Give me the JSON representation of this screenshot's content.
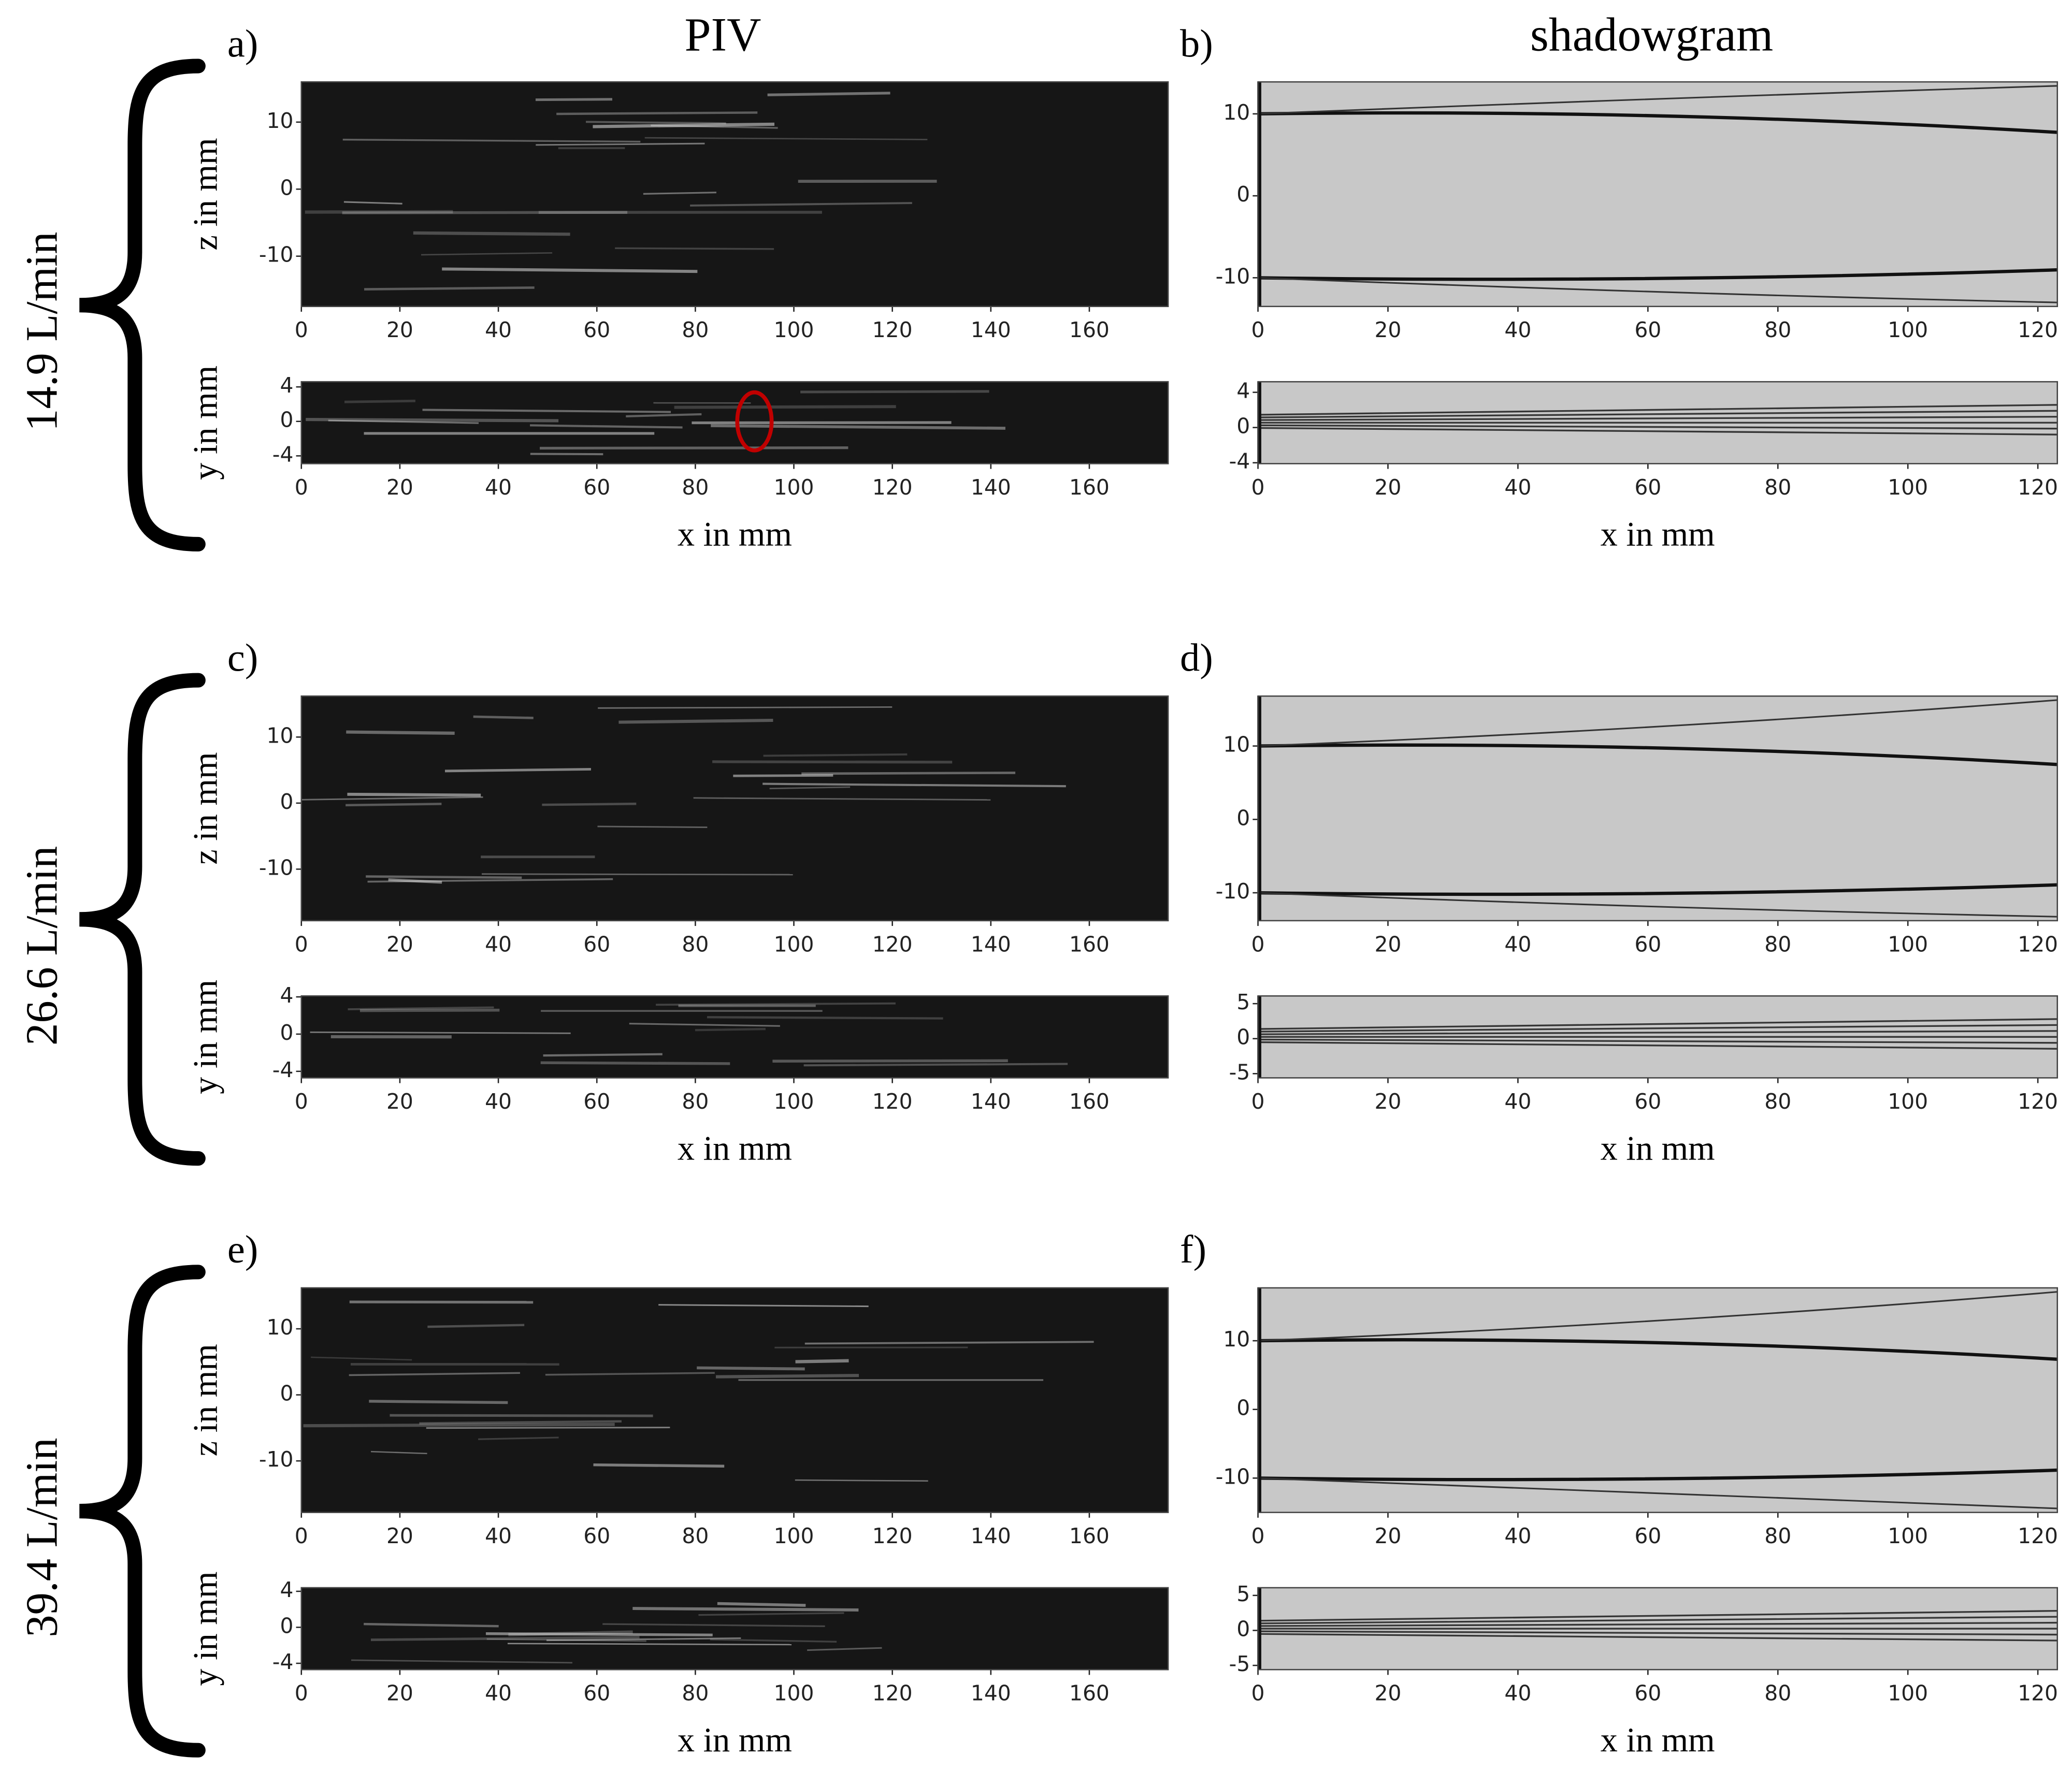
{
  "column_titles": [
    "PIV",
    "shadowgram"
  ],
  "rows": [
    {
      "label": "14.9 L/min",
      "panels": [
        {
          "letter": "a)",
          "top": {
            "ylabel": "z in mm",
            "xlim": [
              0,
              176
            ],
            "ylim": [
              -17.5,
              16
            ],
            "xticks": [
              0,
              20,
              40,
              60,
              80,
              100,
              120,
              140,
              160
            ],
            "yticks": [
              -10,
              0,
              10
            ]
          },
          "bottom": {
            "ylabel": "y in mm",
            "xlim": [
              0,
              176
            ],
            "ylim": [
              -4.9,
              4.6
            ],
            "xticks": [
              0,
              20,
              40,
              60,
              80,
              100,
              120,
              140,
              160
            ],
            "yticks": [
              -4,
              0,
              4
            ]
          },
          "xlabel": "x in mm"
        },
        {
          "letter": "b)",
          "top": {
            "xlim": [
              0,
              123
            ],
            "ylim": [
              -13.5,
              13.9
            ],
            "xticks": [
              0,
              20,
              40,
              60,
              80,
              100,
              120
            ],
            "yticks": [
              -10,
              0,
              10
            ]
          },
          "bottom": {
            "xlim": [
              0,
              123
            ],
            "ylim": [
              -4.1,
              5.2
            ],
            "xticks": [
              0,
              20,
              40,
              60,
              80,
              100,
              120
            ],
            "yticks": [
              -4,
              0,
              4
            ]
          },
          "xlabel": "x in mm"
        }
      ]
    },
    {
      "label": "26.6 L/min",
      "panels": [
        {
          "letter": "c)",
          "top": {
            "ylabel": "z in mm",
            "xlim": [
              0,
              176
            ],
            "ylim": [
              -17.8,
              16.2
            ],
            "xticks": [
              0,
              20,
              40,
              60,
              80,
              100,
              120,
              140,
              160
            ],
            "yticks": [
              -10,
              0,
              10
            ]
          },
          "bottom": {
            "ylabel": "y in mm",
            "xlim": [
              0,
              176
            ],
            "ylim": [
              -4.7,
              4.1
            ],
            "xticks": [
              0,
              20,
              40,
              60,
              80,
              100,
              120,
              140,
              160
            ],
            "yticks": [
              -4,
              0,
              4
            ]
          },
          "xlabel": "x in mm"
        },
        {
          "letter": "d)",
          "top": {
            "xlim": [
              0,
              123
            ],
            "ylim": [
              -13.8,
              16.8
            ],
            "xticks": [
              0,
              20,
              40,
              60,
              80,
              100,
              120
            ],
            "yticks": [
              -10,
              0,
              10
            ]
          },
          "bottom": {
            "xlim": [
              0,
              123
            ],
            "ylim": [
              -5.6,
              6.1
            ],
            "xticks": [
              0,
              20,
              40,
              60,
              80,
              100,
              120
            ],
            "yticks": [
              -5,
              0,
              5
            ]
          },
          "xlabel": "x in mm"
        }
      ]
    },
    {
      "label": "39.4 L/min",
      "panels": [
        {
          "letter": "e)",
          "top": {
            "ylabel": "z in mm",
            "xlim": [
              0,
              176
            ],
            "ylim": [
              -17.8,
              16.2
            ],
            "xticks": [
              0,
              20,
              40,
              60,
              80,
              100,
              120,
              140,
              160
            ],
            "yticks": [
              -10,
              0,
              10
            ]
          },
          "bottom": {
            "ylabel": "y in mm",
            "xlim": [
              0,
              176
            ],
            "ylim": [
              -4.7,
              4.4
            ],
            "xticks": [
              0,
              20,
              40,
              60,
              80,
              100,
              120,
              140,
              160
            ],
            "yticks": [
              -4,
              0,
              4
            ]
          },
          "xlabel": "x in mm"
        },
        {
          "letter": "f)",
          "top": {
            "xlim": [
              0,
              123
            ],
            "ylim": [
              -15,
              17.7
            ],
            "xticks": [
              0,
              20,
              40,
              60,
              80,
              100,
              120
            ],
            "yticks": [
              -10,
              0,
              10
            ]
          },
          "bottom": {
            "xlim": [
              0,
              123
            ],
            "ylim": [
              -5.6,
              6.1
            ],
            "xticks": [
              0,
              20,
              40,
              60,
              80,
              100,
              120
            ],
            "yticks": [
              -5,
              0,
              5
            ]
          },
          "xlabel": "x in mm"
        }
      ]
    }
  ]
}
